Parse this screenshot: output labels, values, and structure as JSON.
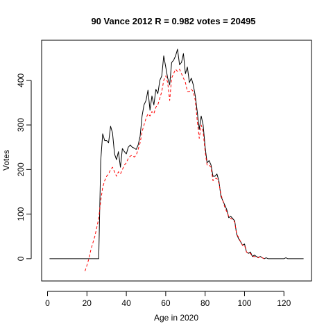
{
  "chart_data": {
    "type": "line",
    "title": "90 Vance 2012 R = 0.982 votes = 20495",
    "xlabel": "Age in 2020",
    "ylabel": "Votes",
    "xlim": [
      -3,
      134
    ],
    "ylim": [
      -50,
      490
    ],
    "x_ticks": [
      0,
      20,
      40,
      60,
      80,
      100,
      120
    ],
    "y_ticks": [
      0,
      100,
      200,
      300,
      400
    ],
    "grid": false,
    "series": [
      {
        "style": "solid",
        "color": "#000000",
        "points": [
          [
            1,
            0
          ],
          [
            5,
            0
          ],
          [
            10,
            0
          ],
          [
            15,
            0
          ],
          [
            20,
            0
          ],
          [
            25,
            0
          ],
          [
            26,
            0
          ],
          [
            27,
            220
          ],
          [
            28,
            280
          ],
          [
            29,
            265
          ],
          [
            30,
            265
          ],
          [
            31,
            260
          ],
          [
            32,
            297
          ],
          [
            33,
            282
          ],
          [
            34,
            235
          ],
          [
            35,
            222
          ],
          [
            36,
            240
          ],
          [
            37,
            205
          ],
          [
            38,
            247
          ],
          [
            39,
            240
          ],
          [
            40,
            235
          ],
          [
            41,
            250
          ],
          [
            42,
            255
          ],
          [
            43,
            250
          ],
          [
            44,
            248
          ],
          [
            45,
            245
          ],
          [
            46,
            255
          ],
          [
            47,
            275
          ],
          [
            48,
            320
          ],
          [
            49,
            345
          ],
          [
            50,
            355
          ],
          [
            51,
            378
          ],
          [
            52,
            333
          ],
          [
            53,
            365
          ],
          [
            54,
            345
          ],
          [
            55,
            380
          ],
          [
            56,
            370
          ],
          [
            57,
            400
          ],
          [
            58,
            410
          ],
          [
            59,
            455
          ],
          [
            60,
            430
          ],
          [
            61,
            405
          ],
          [
            62,
            390
          ],
          [
            63,
            440
          ],
          [
            64,
            445
          ],
          [
            65,
            455
          ],
          [
            66,
            470
          ],
          [
            67,
            435
          ],
          [
            68,
            440
          ],
          [
            69,
            460
          ],
          [
            70,
            415
          ],
          [
            71,
            430
          ],
          [
            72,
            395
          ],
          [
            73,
            405
          ],
          [
            74,
            390
          ],
          [
            75,
            365
          ],
          [
            76,
            330
          ],
          [
            77,
            290
          ],
          [
            78,
            320
          ],
          [
            79,
            300
          ],
          [
            80,
            250
          ],
          [
            81,
            215
          ],
          [
            82,
            220
          ],
          [
            83,
            210
          ],
          [
            84,
            185
          ],
          [
            85,
            185
          ],
          [
            86,
            190
          ],
          [
            87,
            175
          ],
          [
            88,
            140
          ],
          [
            89,
            130
          ],
          [
            90,
            120
          ],
          [
            91,
            110
          ],
          [
            92,
            92
          ],
          [
            93,
            95
          ],
          [
            94,
            90
          ],
          [
            95,
            85
          ],
          [
            96,
            55
          ],
          [
            97,
            45
          ],
          [
            98,
            38
          ],
          [
            99,
            30
          ],
          [
            100,
            33
          ],
          [
            101,
            15
          ],
          [
            102,
            12
          ],
          [
            103,
            15
          ],
          [
            104,
            5
          ],
          [
            105,
            8
          ],
          [
            106,
            5
          ],
          [
            107,
            3
          ],
          [
            108,
            5
          ],
          [
            109,
            2
          ],
          [
            110,
            0
          ],
          [
            111,
            2
          ],
          [
            112,
            0
          ],
          [
            115,
            0
          ],
          [
            120,
            0
          ],
          [
            121,
            2
          ],
          [
            122,
            0
          ],
          [
            125,
            0
          ],
          [
            130,
            0
          ]
        ]
      },
      {
        "style": "dashed",
        "color": "#ff0000",
        "points": [
          [
            19,
            -28
          ],
          [
            20,
            -15
          ],
          [
            21,
            0
          ],
          [
            22,
            20
          ],
          [
            23,
            35
          ],
          [
            24,
            50
          ],
          [
            25,
            70
          ],
          [
            26,
            90
          ],
          [
            27,
            130
          ],
          [
            28,
            160
          ],
          [
            29,
            175
          ],
          [
            30,
            185
          ],
          [
            31,
            190
          ],
          [
            32,
            200
          ],
          [
            33,
            205
          ],
          [
            34,
            195
          ],
          [
            35,
            185
          ],
          [
            36,
            195
          ],
          [
            37,
            190
          ],
          [
            38,
            200
          ],
          [
            39,
            210
          ],
          [
            40,
            215
          ],
          [
            41,
            225
          ],
          [
            42,
            230
          ],
          [
            43,
            232
          ],
          [
            44,
            228
          ],
          [
            45,
            232
          ],
          [
            46,
            245
          ],
          [
            47,
            260
          ],
          [
            48,
            285
          ],
          [
            49,
            300
          ],
          [
            50,
            315
          ],
          [
            51,
            325
          ],
          [
            52,
            320
          ],
          [
            53,
            330
          ],
          [
            54,
            325
          ],
          [
            55,
            340
          ],
          [
            56,
            345
          ],
          [
            57,
            360
          ],
          [
            58,
            375
          ],
          [
            59,
            400
          ],
          [
            60,
            410
          ],
          [
            61,
            395
          ],
          [
            62,
            355
          ],
          [
            63,
            405
          ],
          [
            64,
            415
          ],
          [
            65,
            425
          ],
          [
            66,
            420
          ],
          [
            67,
            425
          ],
          [
            68,
            415
          ],
          [
            69,
            405
          ],
          [
            70,
            395
          ],
          [
            71,
            375
          ],
          [
            72,
            375
          ],
          [
            73,
            380
          ],
          [
            74,
            375
          ],
          [
            75,
            355
          ],
          [
            76,
            310
          ],
          [
            77,
            270
          ],
          [
            78,
            300
          ],
          [
            79,
            285
          ],
          [
            80,
            240
          ],
          [
            81,
            210
          ],
          [
            82,
            210
          ],
          [
            83,
            205
          ],
          [
            84,
            175
          ],
          [
            85,
            180
          ],
          [
            86,
            180
          ],
          [
            87,
            170
          ],
          [
            88,
            145
          ],
          [
            89,
            130
          ],
          [
            90,
            115
          ],
          [
            91,
            105
          ],
          [
            92,
            95
          ],
          [
            93,
            90
          ],
          [
            94,
            88
          ],
          [
            95,
            82
          ],
          [
            96,
            55
          ],
          [
            97,
            48
          ],
          [
            98,
            38
          ],
          [
            99,
            30
          ],
          [
            100,
            30
          ],
          [
            101,
            15
          ],
          [
            102,
            12
          ],
          [
            103,
            12
          ],
          [
            104,
            5
          ],
          [
            105,
            5
          ],
          [
            106,
            3
          ],
          [
            107,
            2
          ],
          [
            108,
            5
          ],
          [
            109,
            2
          ],
          [
            110,
            0
          ]
        ]
      }
    ]
  }
}
